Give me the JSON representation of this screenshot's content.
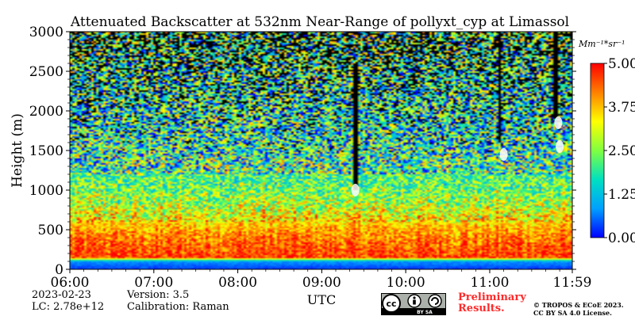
{
  "chart_data": {
    "type": "heatmap",
    "title": "Attenuated Backscatter at 532nm Near-Range of pollyxt_cyp at Limassol",
    "xlabel": "UTC",
    "ylabel": "Height (m)",
    "x_ticks": [
      "06:00",
      "07:00",
      "08:00",
      "09:00",
      "10:00",
      "11:00",
      "11:59"
    ],
    "x_range": [
      "06:00",
      "11:59"
    ],
    "y_ticks": [
      0,
      500,
      1000,
      1500,
      2000,
      2500,
      3000
    ],
    "ylim": [
      0,
      3000
    ],
    "colorbar": {
      "unit_label": "Mm⁻¹*sr⁻¹",
      "ticks": [
        "0.00",
        "1.25",
        "2.50",
        "3.75",
        "5.00"
      ],
      "range": [
        0,
        5
      ],
      "colormap": [
        "#0000ff",
        "#00a0ff",
        "#00e0c0",
        "#80ff40",
        "#ffff00",
        "#ff8000",
        "#ff0000"
      ]
    },
    "profile": [
      {
        "height": 0,
        "value": 0.3
      },
      {
        "height": 100,
        "value": 0.8
      },
      {
        "height": 150,
        "value": 4.6
      },
      {
        "height": 300,
        "value": 4.4
      },
      {
        "height": 500,
        "value": 3.9
      },
      {
        "height": 700,
        "value": 3.2
      },
      {
        "height": 900,
        "value": 2.6
      },
      {
        "height": 1200,
        "value": 2.1
      },
      {
        "height": 1600,
        "value": 1.8
      },
      {
        "height": 2200,
        "value": 1.8
      },
      {
        "height": 3000,
        "value": 2.2
      }
    ],
    "features": [
      {
        "type": "signal-gap",
        "time": "09:24",
        "from_height": 1000,
        "to_height": 2600
      },
      {
        "type": "signal-gap",
        "time": "11:07",
        "from_height": 1600,
        "to_height": 3000
      },
      {
        "type": "signal-gap",
        "time": "11:47",
        "from_height": 1900,
        "to_height": 3000
      },
      {
        "type": "cloud",
        "time": "09:24",
        "height": 1000,
        "value": 5.0
      },
      {
        "type": "cloud",
        "time": "11:10",
        "height": 1450,
        "value": 5.0
      },
      {
        "type": "cloud",
        "time": "11:50",
        "height": 1550,
        "value": 5.0
      },
      {
        "type": "cloud",
        "time": "11:49",
        "height": 1850,
        "value": 5.0
      }
    ]
  },
  "footer": {
    "date": "2023-02-23",
    "lc": "LC: 2.78e+12",
    "version": "Version: 3.5",
    "calibration": "Calibration: Raman",
    "preliminary": "Preliminary Results.",
    "copyright_line1": "© TROPOS & ECoE 2023.",
    "copyright_line2": "CC BY SA 4.0 License."
  },
  "license_badge": {
    "text": "BY SA",
    "icon": "cc-by-sa-icon"
  }
}
